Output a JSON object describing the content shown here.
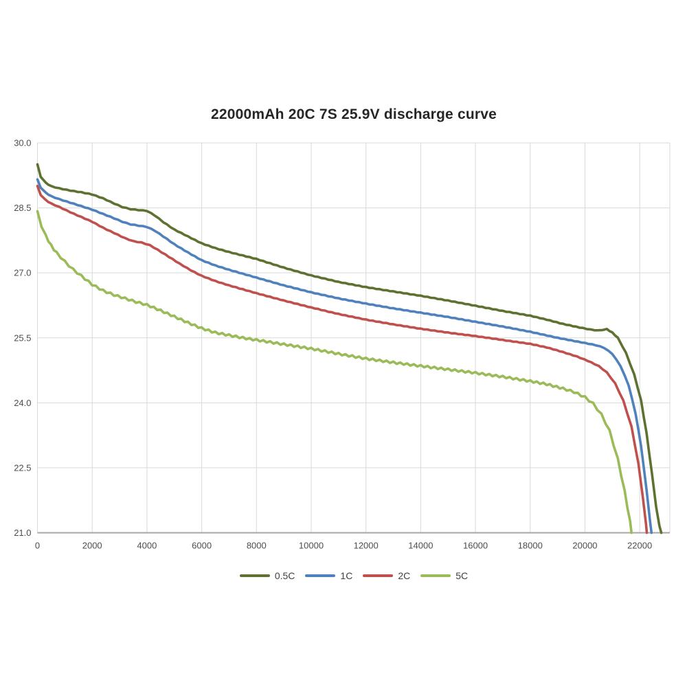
{
  "page": {
    "background": "#ffffff"
  },
  "chart_data": {
    "type": "line",
    "title": "22000mAh 20C 7S 25.9V discharge curve",
    "xlabel": "",
    "ylabel": "",
    "xlim": [
      0,
      23100
    ],
    "ylim": [
      21.0,
      30.0
    ],
    "grid": true,
    "legend_position": "bottom-center",
    "gridline_color": "#d9d9d9",
    "axis_color": "#a6a6a6",
    "tick_label_color": "#4d4d4d",
    "x_ticks": [
      {
        "value": 0,
        "label": "0"
      },
      {
        "value": 2000,
        "label": "2000"
      },
      {
        "value": 4000,
        "label": "4000"
      },
      {
        "value": 6000,
        "label": "6000"
      },
      {
        "value": 8000,
        "label": "8000"
      },
      {
        "value": 10000,
        "label": "10000"
      },
      {
        "value": 12000,
        "label": "12000"
      },
      {
        "value": 14000,
        "label": "14000"
      },
      {
        "value": 16000,
        "label": "16000"
      },
      {
        "value": 18000,
        "label": "18000"
      },
      {
        "value": 20000,
        "label": "20000"
      },
      {
        "value": 22000,
        "label": "22000"
      }
    ],
    "y_ticks": [
      {
        "value": 30.0,
        "label": "30.0"
      },
      {
        "value": 28.5,
        "label": "28.5"
      },
      {
        "value": 27.0,
        "label": "27.0"
      },
      {
        "value": 25.5,
        "label": "25.5"
      },
      {
        "value": 24.0,
        "label": "24.0"
      },
      {
        "value": 22.5,
        "label": "22.5"
      },
      {
        "value": 21.0,
        "label": "21.0"
      }
    ],
    "series": [
      {
        "name": "0.5C",
        "color": "#5e7130",
        "jagged": 0.35,
        "points": [
          [
            0,
            29.5
          ],
          [
            120,
            29.22
          ],
          [
            300,
            29.08
          ],
          [
            500,
            29.0
          ],
          [
            800,
            28.95
          ],
          [
            1200,
            28.9
          ],
          [
            1600,
            28.86
          ],
          [
            2000,
            28.81
          ],
          [
            2400,
            28.72
          ],
          [
            2800,
            28.6
          ],
          [
            3100,
            28.52
          ],
          [
            3400,
            28.47
          ],
          [
            3700,
            28.45
          ],
          [
            4000,
            28.43
          ],
          [
            4300,
            28.32
          ],
          [
            4600,
            28.17
          ],
          [
            5000,
            28.0
          ],
          [
            5500,
            27.84
          ],
          [
            6000,
            27.68
          ],
          [
            6500,
            27.57
          ],
          [
            7000,
            27.48
          ],
          [
            7500,
            27.4
          ],
          [
            8000,
            27.32
          ],
          [
            9000,
            27.12
          ],
          [
            10000,
            26.94
          ],
          [
            11000,
            26.79
          ],
          [
            12000,
            26.67
          ],
          [
            13000,
            26.57
          ],
          [
            14000,
            26.47
          ],
          [
            15000,
            26.36
          ],
          [
            16000,
            26.24
          ],
          [
            17000,
            26.12
          ],
          [
            18000,
            26.01
          ],
          [
            18600,
            25.92
          ],
          [
            19200,
            25.82
          ],
          [
            19800,
            25.74
          ],
          [
            20200,
            25.69
          ],
          [
            20500,
            25.67
          ],
          [
            20800,
            25.7
          ],
          [
            21000,
            25.62
          ],
          [
            21200,
            25.5
          ],
          [
            21500,
            25.15
          ],
          [
            21800,
            24.65
          ],
          [
            22050,
            24.05
          ],
          [
            22250,
            23.3
          ],
          [
            22450,
            22.35
          ],
          [
            22600,
            21.6
          ],
          [
            22720,
            21.15
          ],
          [
            22790,
            21.0
          ]
        ]
      },
      {
        "name": "1C",
        "color": "#4f81bd",
        "jagged": 0.35,
        "points": [
          [
            0,
            29.15
          ],
          [
            120,
            28.97
          ],
          [
            300,
            28.85
          ],
          [
            500,
            28.77
          ],
          [
            800,
            28.7
          ],
          [
            1200,
            28.62
          ],
          [
            1600,
            28.54
          ],
          [
            2000,
            28.46
          ],
          [
            2400,
            28.36
          ],
          [
            2800,
            28.26
          ],
          [
            3100,
            28.18
          ],
          [
            3400,
            28.12
          ],
          [
            3700,
            28.09
          ],
          [
            4000,
            28.06
          ],
          [
            4300,
            27.97
          ],
          [
            4600,
            27.84
          ],
          [
            5000,
            27.66
          ],
          [
            5500,
            27.47
          ],
          [
            6000,
            27.29
          ],
          [
            6500,
            27.17
          ],
          [
            7000,
            27.07
          ],
          [
            8000,
            26.89
          ],
          [
            9000,
            26.71
          ],
          [
            10000,
            26.55
          ],
          [
            11000,
            26.41
          ],
          [
            12000,
            26.29
          ],
          [
            13000,
            26.18
          ],
          [
            14000,
            26.08
          ],
          [
            15000,
            25.98
          ],
          [
            16000,
            25.87
          ],
          [
            17000,
            25.76
          ],
          [
            18000,
            25.64
          ],
          [
            18500,
            25.57
          ],
          [
            19000,
            25.5
          ],
          [
            19500,
            25.44
          ],
          [
            20000,
            25.38
          ],
          [
            20400,
            25.33
          ],
          [
            20700,
            25.27
          ],
          [
            21000,
            25.13
          ],
          [
            21300,
            24.85
          ],
          [
            21600,
            24.4
          ],
          [
            21850,
            23.75
          ],
          [
            22050,
            23.0
          ],
          [
            22250,
            22.0
          ],
          [
            22380,
            21.25
          ],
          [
            22430,
            21.0
          ]
        ]
      },
      {
        "name": "2C",
        "color": "#c0504d",
        "jagged": 0.35,
        "points": [
          [
            0,
            29.0
          ],
          [
            120,
            28.8
          ],
          [
            300,
            28.68
          ],
          [
            500,
            28.6
          ],
          [
            800,
            28.52
          ],
          [
            1200,
            28.4
          ],
          [
            1600,
            28.29
          ],
          [
            2000,
            28.18
          ],
          [
            2400,
            28.04
          ],
          [
            2800,
            27.92
          ],
          [
            3200,
            27.8
          ],
          [
            3500,
            27.73
          ],
          [
            3800,
            27.7
          ],
          [
            4100,
            27.64
          ],
          [
            4400,
            27.53
          ],
          [
            4800,
            27.37
          ],
          [
            5200,
            27.21
          ],
          [
            5600,
            27.06
          ],
          [
            6000,
            26.93
          ],
          [
            6500,
            26.81
          ],
          [
            7000,
            26.71
          ],
          [
            8000,
            26.53
          ],
          [
            9000,
            26.36
          ],
          [
            10000,
            26.2
          ],
          [
            11000,
            26.05
          ],
          [
            12000,
            25.92
          ],
          [
            13000,
            25.81
          ],
          [
            14000,
            25.71
          ],
          [
            15000,
            25.62
          ],
          [
            16000,
            25.54
          ],
          [
            17000,
            25.45
          ],
          [
            18000,
            25.36
          ],
          [
            18600,
            25.28
          ],
          [
            19200,
            25.17
          ],
          [
            19700,
            25.07
          ],
          [
            20100,
            24.97
          ],
          [
            20500,
            24.85
          ],
          [
            20800,
            24.7
          ],
          [
            21100,
            24.45
          ],
          [
            21400,
            24.05
          ],
          [
            21700,
            23.45
          ],
          [
            21950,
            22.6
          ],
          [
            22120,
            21.8
          ],
          [
            22230,
            21.2
          ],
          [
            22260,
            21.0
          ]
        ]
      },
      {
        "name": "5C",
        "color": "#9bbb59",
        "jagged": 1.35,
        "points": [
          [
            0,
            28.4
          ],
          [
            150,
            28.08
          ],
          [
            300,
            27.86
          ],
          [
            500,
            27.63
          ],
          [
            700,
            27.46
          ],
          [
            1000,
            27.26
          ],
          [
            1300,
            27.08
          ],
          [
            1600,
            26.93
          ],
          [
            2000,
            26.73
          ],
          [
            2400,
            26.59
          ],
          [
            2800,
            26.49
          ],
          [
            3200,
            26.41
          ],
          [
            3600,
            26.33
          ],
          [
            4000,
            26.26
          ],
          [
            4500,
            26.13
          ],
          [
            5000,
            25.99
          ],
          [
            5500,
            25.85
          ],
          [
            6000,
            25.72
          ],
          [
            6500,
            25.62
          ],
          [
            7000,
            25.56
          ],
          [
            7500,
            25.5
          ],
          [
            8000,
            25.45
          ],
          [
            9000,
            25.35
          ],
          [
            10000,
            25.25
          ],
          [
            11000,
            25.13
          ],
          [
            12000,
            25.02
          ],
          [
            13000,
            24.93
          ],
          [
            14000,
            24.85
          ],
          [
            15000,
            24.77
          ],
          [
            16000,
            24.69
          ],
          [
            17000,
            24.6
          ],
          [
            18000,
            24.5
          ],
          [
            18600,
            24.43
          ],
          [
            19200,
            24.33
          ],
          [
            19600,
            24.25
          ],
          [
            20000,
            24.13
          ],
          [
            20300,
            23.98
          ],
          [
            20600,
            23.73
          ],
          [
            20900,
            23.35
          ],
          [
            21200,
            22.7
          ],
          [
            21450,
            21.95
          ],
          [
            21650,
            21.25
          ],
          [
            21700,
            21.0
          ]
        ]
      }
    ]
  }
}
